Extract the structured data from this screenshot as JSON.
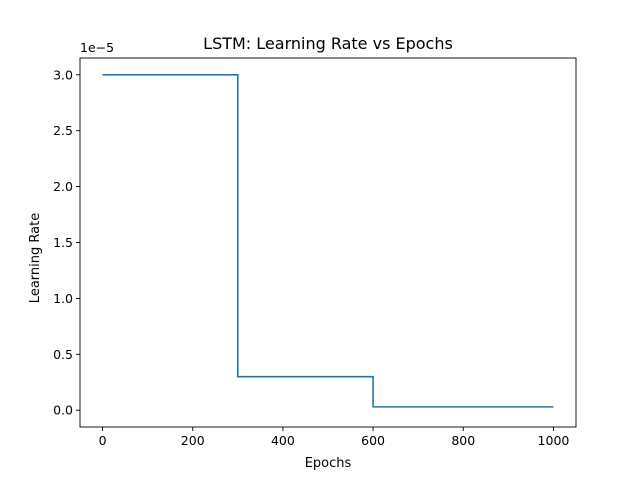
{
  "chart_data": {
    "type": "line",
    "title": "LSTM: Learning Rate vs Epochs",
    "xlabel": "Epochs",
    "ylabel": "Learning Rate",
    "y_offset_label": "1e−5",
    "y_scale_factor": 1e-05,
    "xlim": [
      -50,
      1050
    ],
    "ylim": [
      -0.15,
      3.15
    ],
    "x_ticks": [
      0,
      200,
      400,
      600,
      800,
      1000
    ],
    "x_tick_labels": [
      "0",
      "200",
      "400",
      "600",
      "800",
      "1000"
    ],
    "y_ticks": [
      0.0,
      0.5,
      1.0,
      1.5,
      2.0,
      2.5,
      3.0
    ],
    "y_tick_labels": [
      "0.0",
      "0.5",
      "1.0",
      "1.5",
      "2.0",
      "2.5",
      "3.0"
    ],
    "grid": false,
    "series": [
      {
        "color": "#1f77b4",
        "step": "post",
        "x": [
          0,
          300,
          600,
          1000
        ],
        "y": [
          3.0,
          0.3,
          0.03,
          0.03
        ]
      }
    ]
  }
}
